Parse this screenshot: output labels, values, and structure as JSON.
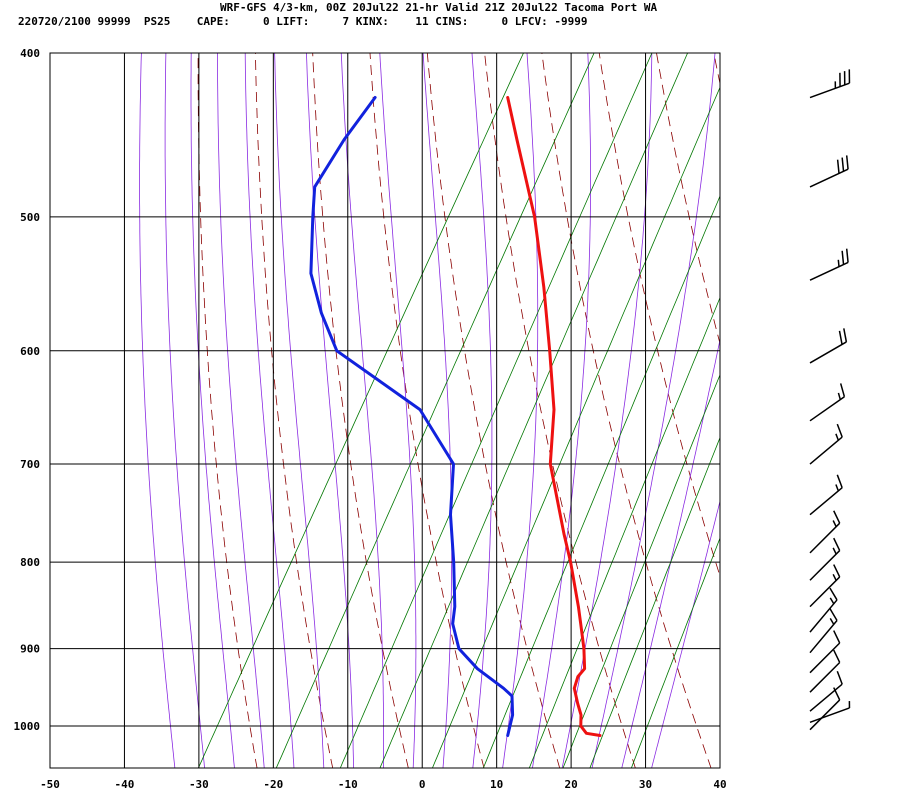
{
  "header": {
    "line1": "WRF-GFS 4/3-km, 00Z 20Jul22 21-hr Valid 21Z 20Jul22 Tacoma Port WA",
    "line2": "220720/2100 99999  PS25    CAPE:     0 LIFT:     7 KINX:    11 CINS:     0 LFCV: -9999"
  },
  "colors": {
    "temperature": "#ee1111",
    "dewpoint": "#1122dd",
    "dry_adiabat": "#8b0000",
    "moist_adiabat": "#8a2be2",
    "mixing_ratio": "#007700",
    "grid": "#000000"
  },
  "chart_data": {
    "type": "line",
    "diagram": "skew-t log-p",
    "x_label": "",
    "y_label": "",
    "xlim": [
      -50,
      40
    ],
    "ylim": [
      1040,
      400
    ],
    "x_ticks": [
      "-50",
      "-40",
      "-30",
      "-20",
      "-10",
      "0",
      "10",
      "20",
      "30",
      "40"
    ],
    "y_ticks": [
      "400",
      "500",
      "600",
      "700",
      "800",
      "900",
      "1000"
    ],
    "grid": true,
    "series": [
      {
        "key": "temperature",
        "values": [
          {
            "p": 1013,
            "t": 24.6
          },
          {
            "p": 1010,
            "t": 22.6
          },
          {
            "p": 1000,
            "t": 21.3
          },
          {
            "p": 985,
            "t": 20.5
          },
          {
            "p": 970,
            "t": 19.2
          },
          {
            "p": 950,
            "t": 17.6
          },
          {
            "p": 935,
            "t": 17.2
          },
          {
            "p": 925,
            "t": 17.5
          },
          {
            "p": 900,
            "t": 15.9
          },
          {
            "p": 870,
            "t": 13.6
          },
          {
            "p": 850,
            "t": 12.0
          },
          {
            "p": 800,
            "t": 7.6
          },
          {
            "p": 770,
            "t": 4.6
          },
          {
            "p": 700,
            "t": -2.5
          },
          {
            "p": 650,
            "t": -6.1
          },
          {
            "p": 600,
            "t": -11.1
          },
          {
            "p": 550,
            "t": -16.7
          },
          {
            "p": 500,
            "t": -23.2
          },
          {
            "p": 450,
            "t": -31.4
          },
          {
            "p": 425,
            "t": -35.8
          }
        ]
      },
      {
        "key": "dewpoint",
        "values": [
          {
            "p": 1013,
            "t": 12.2
          },
          {
            "p": 985,
            "t": 11.3
          },
          {
            "p": 960,
            "t": 9.8
          },
          {
            "p": 950,
            "t": 8.1
          },
          {
            "p": 925,
            "t": 3.1
          },
          {
            "p": 900,
            "t": -0.9
          },
          {
            "p": 870,
            "t": -3.6
          },
          {
            "p": 850,
            "t": -4.6
          },
          {
            "p": 800,
            "t": -8.1
          },
          {
            "p": 750,
            "t": -12.1
          },
          {
            "p": 700,
            "t": -15.5
          },
          {
            "p": 650,
            "t": -24.1
          },
          {
            "p": 600,
            "t": -39.7
          },
          {
            "p": 570,
            "t": -44.6
          },
          {
            "p": 540,
            "t": -49.0
          },
          {
            "p": 500,
            "t": -53.0
          },
          {
            "p": 480,
            "t": -55.0
          },
          {
            "p": 450,
            "t": -54.6
          },
          {
            "p": 425,
            "t": -53.6
          }
        ]
      }
    ]
  },
  "wind_barbs": [
    {
      "p": 425,
      "dir": 250,
      "speed": 35
    },
    {
      "p": 480,
      "dir": 245,
      "speed": 30
    },
    {
      "p": 545,
      "dir": 245,
      "speed": 25
    },
    {
      "p": 610,
      "dir": 240,
      "speed": 20
    },
    {
      "p": 660,
      "dir": 235,
      "speed": 15
    },
    {
      "p": 700,
      "dir": 230,
      "speed": 15
    },
    {
      "p": 750,
      "dir": 230,
      "speed": 15
    },
    {
      "p": 790,
      "dir": 225,
      "speed": 15
    },
    {
      "p": 820,
      "dir": 225,
      "speed": 15
    },
    {
      "p": 850,
      "dir": 225,
      "speed": 15
    },
    {
      "p": 880,
      "dir": 220,
      "speed": 15
    },
    {
      "p": 905,
      "dir": 220,
      "speed": 15
    },
    {
      "p": 930,
      "dir": 225,
      "speed": 10
    },
    {
      "p": 955,
      "dir": 225,
      "speed": 10
    },
    {
      "p": 980,
      "dir": 230,
      "speed": 10
    },
    {
      "p": 995,
      "dir": 250,
      "speed": 5
    },
    {
      "p": 1005,
      "dir": 225,
      "speed": 10
    }
  ]
}
